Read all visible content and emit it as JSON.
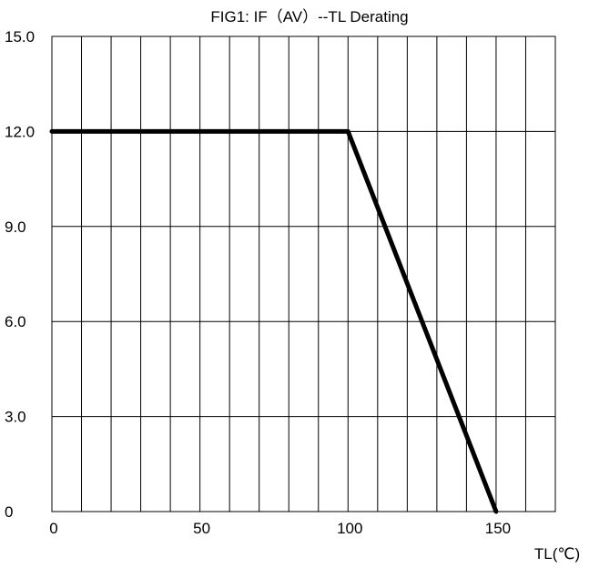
{
  "chart_data": {
    "type": "line",
    "title": "FIG1: IF（AV）--TL  Derating",
    "xlabel": "TL(℃)",
    "ylabel": "",
    "xlim": [
      0,
      170
    ],
    "ylim": [
      0,
      15
    ],
    "x_ticks": [
      0,
      50,
      100,
      150
    ],
    "x_tick_labels": [
      "0",
      "50",
      "100",
      "150"
    ],
    "y_ticks": [
      0,
      3,
      6,
      9,
      12,
      15
    ],
    "y_tick_labels": [
      "0",
      "3.0",
      "6.0",
      "9.0",
      "12.0",
      "15.0"
    ],
    "grid": true,
    "x_grid_step": 10,
    "y_grid_step": 3,
    "series": [
      {
        "x": [
          0,
          100,
          150
        ],
        "values": [
          12,
          12,
          0
        ],
        "color": "#000000"
      }
    ]
  }
}
